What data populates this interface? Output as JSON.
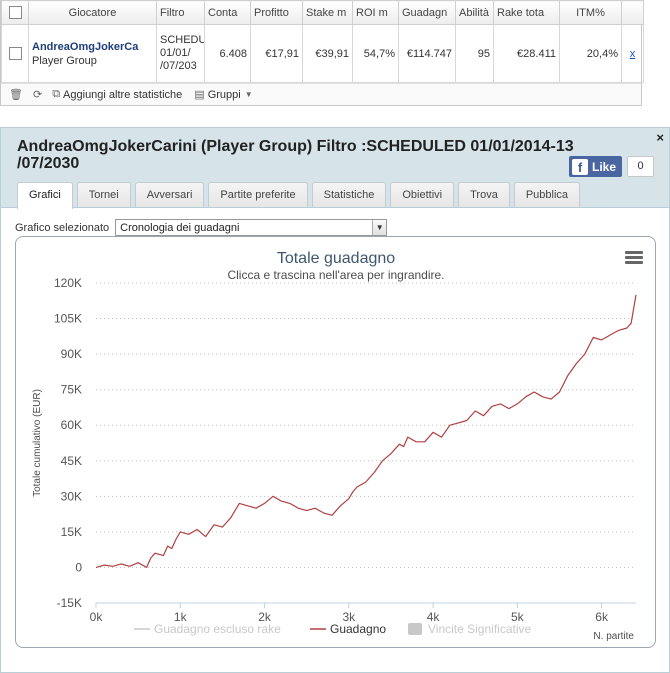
{
  "table": {
    "headers": [
      "",
      "Giocatore",
      "Filtro",
      "Conta",
      "Profitto",
      "Stake m",
      "ROI m",
      "Guadagn",
      "Abilità",
      "Rake tota",
      "ITM%",
      ""
    ],
    "row": {
      "player_name": "AndreaOmgJokerCa",
      "player_group": "Player Group",
      "filter_line1": "SCHEDU",
      "filter_line2": "01/01/",
      "filter_line3": "/07/203",
      "count": "6.408",
      "profit": "€17,91",
      "stake": "€39,91",
      "roi": "54,7%",
      "earnings": "€114.747",
      "ability": "95",
      "rake": "€28.411",
      "itm": "20,4%",
      "action": "x"
    }
  },
  "toolbar": {
    "add_stats": "Aggiungi altre statistiche",
    "groups": "Gruppi"
  },
  "dialog": {
    "title": "AndreaOmgJokerCarini (Player Group) Filtro :SCHEDULED 01/01/2014-13 /07/2030",
    "fb_like": "Like",
    "fb_count": "0",
    "close": "×",
    "tabs": [
      "Grafici",
      "Tornei",
      "Avversari",
      "Partite preferite",
      "Statistiche",
      "Obiettivi",
      "Trova",
      "Pubblica"
    ],
    "chart_select_label": "Grafico selezionato",
    "chart_select_value": "Cronologia dei guadagni"
  },
  "colors": {
    "series_line": "#b04040",
    "legend_inactive": "#c8c8c8",
    "header_bg": "#d6e4ea"
  },
  "chart_data": {
    "type": "line",
    "title": "Totale guadagno",
    "subtitle": "Clicca e trascina nell'area per ingrandire.",
    "ylabel": "Totale cumulativo (EUR)",
    "xlabel": "N. partite",
    "ylim": [
      -15000,
      120000
    ],
    "xlim": [
      0,
      6408
    ],
    "y_ticks": [
      "120K",
      "105K",
      "90K",
      "75K",
      "60K",
      "45K",
      "30K",
      "15K",
      "0",
      "-15K"
    ],
    "x_ticks": [
      "0k",
      "1k",
      "2k",
      "3k",
      "4k",
      "5k",
      "6k"
    ],
    "legend": [
      {
        "name": "Guadagno escluso rake",
        "visible": false
      },
      {
        "name": "Guadagno",
        "visible": true
      },
      {
        "name": "Vincite Significative",
        "visible": false
      }
    ],
    "series": [
      {
        "name": "Guadagno",
        "x": [
          0,
          100,
          200,
          300,
          400,
          500,
          600,
          650,
          700,
          800,
          850,
          900,
          950,
          1000,
          1100,
          1200,
          1300,
          1400,
          1500,
          1600,
          1700,
          1800,
          1900,
          2000,
          2100,
          2200,
          2300,
          2400,
          2500,
          2600,
          2700,
          2800,
          2900,
          3000,
          3050,
          3100,
          3200,
          3300,
          3400,
          3500,
          3600,
          3650,
          3700,
          3800,
          3900,
          4000,
          4100,
          4200,
          4300,
          4400,
          4500,
          4600,
          4700,
          4800,
          4900,
          5000,
          5100,
          5200,
          5300,
          5400,
          5500,
          5600,
          5700,
          5800,
          5900,
          6000,
          6100,
          6200,
          6300,
          6350,
          6408
        ],
        "values": [
          0,
          1000,
          500,
          1500,
          500,
          2000,
          0,
          4000,
          6000,
          5000,
          9000,
          8000,
          12000,
          15000,
          14000,
          16000,
          13000,
          18000,
          17000,
          21000,
          27000,
          26000,
          25000,
          27000,
          30000,
          28000,
          27000,
          25000,
          24000,
          25000,
          23000,
          22000,
          26000,
          29000,
          32000,
          34000,
          36000,
          40000,
          45000,
          48000,
          52000,
          51000,
          55000,
          53000,
          53000,
          57000,
          55000,
          60000,
          61000,
          62000,
          66000,
          64000,
          68000,
          69000,
          67000,
          69000,
          72000,
          74000,
          72000,
          71000,
          74000,
          81000,
          86000,
          90000,
          97000,
          96000,
          98000,
          100000,
          101000,
          103000,
          115000
        ]
      }
    ]
  }
}
